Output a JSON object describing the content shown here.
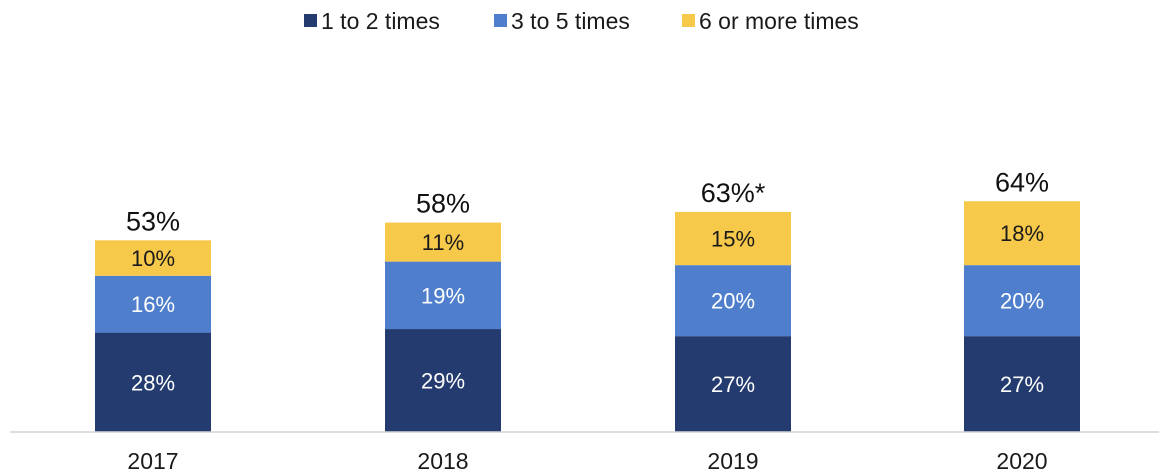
{
  "chart_data": {
    "type": "bar",
    "stacked": true,
    "title": "",
    "xlabel": "",
    "ylabel": "",
    "categories": [
      "2017",
      "2018",
      "2019",
      "2020"
    ],
    "ylim": [
      0,
      70
    ],
    "grid": false,
    "legend": "top-center",
    "series": [
      {
        "name": "1 to 2 times",
        "color": "#233b6e",
        "values": [
          28,
          29,
          27,
          27
        ],
        "labels": [
          "28%",
          "29%",
          "27%",
          "27%"
        ]
      },
      {
        "name": "3 to 5 times",
        "color": "#4f7fcc",
        "values": [
          16,
          19,
          20,
          20
        ],
        "labels": [
          "16%",
          "19%",
          "20%",
          "20%"
        ]
      },
      {
        "name": "6 or more times",
        "color": "#f7c94b",
        "values": [
          10,
          11,
          15,
          18
        ],
        "labels": [
          "10%",
          "11%",
          "15%",
          "18%"
        ]
      }
    ],
    "totals": [
      53,
      58,
      63,
      64
    ],
    "total_labels": [
      "53%",
      "58%",
      "63%*",
      "64%"
    ]
  }
}
